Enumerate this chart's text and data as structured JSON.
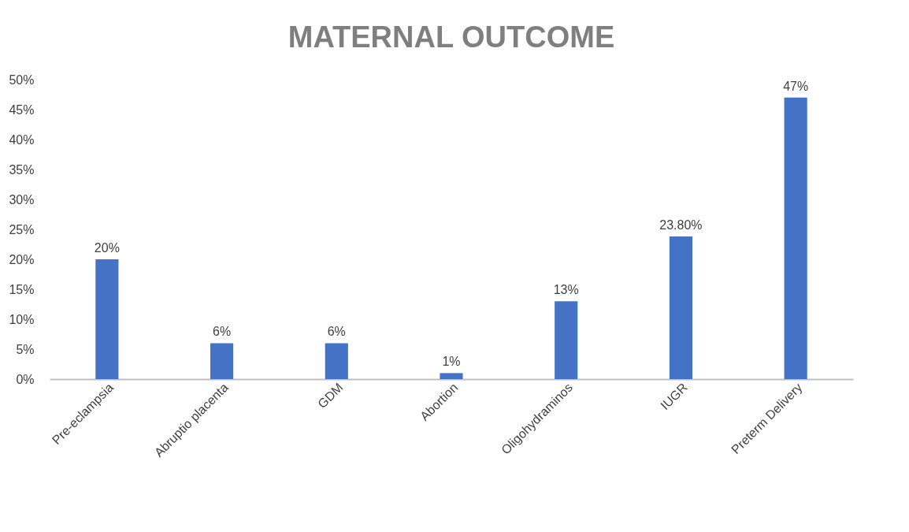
{
  "chart_data": {
    "type": "bar",
    "title": "MATERNAL OUTCOME",
    "categories": [
      "Pre-eclampsia",
      "Abruptio placenta",
      "GDM",
      "Abortion",
      "Oligohydraminos",
      "IUGR",
      "Preterm Delivery"
    ],
    "values": [
      20,
      6,
      6,
      1,
      13,
      23.8,
      47
    ],
    "value_labels": [
      "20%",
      "6%",
      "6%",
      "1%",
      "13%",
      "23.80%",
      "47%"
    ],
    "color": "#4472c4",
    "ylim": [
      0,
      50
    ],
    "yticks": [
      {
        "value": 0,
        "label": "0%"
      },
      {
        "value": 5,
        "label": "5%"
      },
      {
        "value": 10,
        "label": "10%"
      },
      {
        "value": 15,
        "label": "15%"
      },
      {
        "value": 20,
        "label": "20%"
      },
      {
        "value": 25,
        "label": "25%"
      },
      {
        "value": 30,
        "label": "30%"
      },
      {
        "value": 35,
        "label": "35%"
      },
      {
        "value": 40,
        "label": "40%"
      },
      {
        "value": 45,
        "label": "45%"
      },
      {
        "value": 50,
        "label": "50%"
      }
    ],
    "grid": false
  }
}
